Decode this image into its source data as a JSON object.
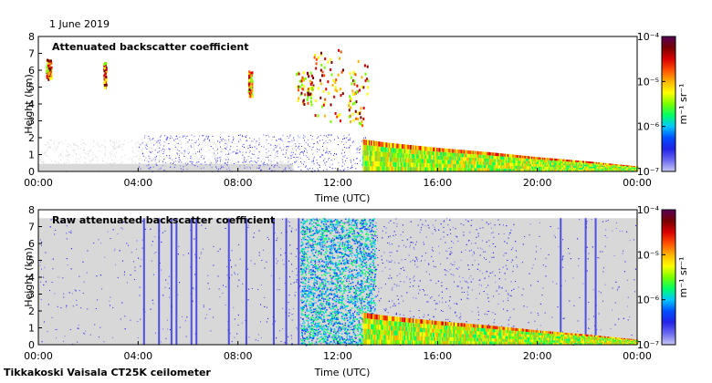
{
  "date_label": "1 June 2019",
  "footer": "Tikkakoski Vaisala CT25K ceilometer",
  "colors": {
    "frame": "#000000",
    "noise_gray": "#d8d8d8",
    "colormap": [
      "#c8c8f5",
      "#6a6af0",
      "#2222e6",
      "#0050ff",
      "#00c8ff",
      "#00ff64",
      "#78ff00",
      "#ffff00",
      "#ffb400",
      "#ff5000",
      "#d80000",
      "#780000",
      "#580058"
    ]
  },
  "chart_data": [
    {
      "type": "heatmap",
      "title": "Attenuated backscatter coefficient",
      "xlabel": "Time (UTC)",
      "ylabel": "Height (km)",
      "xlim": [
        "00:00",
        "24:00"
      ],
      "ylim": [
        0,
        8
      ],
      "x_ticks": [
        "00:00",
        "04:00",
        "08:00",
        "12:00",
        "16:00",
        "20:00",
        "00:00"
      ],
      "y_ticks": [
        0,
        1,
        2,
        3,
        4,
        5,
        6,
        7,
        8
      ],
      "colorbar": {
        "label": "m⁻¹ sr⁻¹",
        "scale": "log",
        "range": [
          1e-07,
          0.0001
        ],
        "ticks": [
          "10⁻⁷",
          "10⁻⁶",
          "10⁻⁵",
          "10⁻⁴"
        ]
      },
      "boundary_layer_top_km": [
        {
          "t": 13.0,
          "h": 1.9
        },
        {
          "t": 14,
          "h": 1.7
        },
        {
          "t": 16,
          "h": 1.4
        },
        {
          "t": 18,
          "h": 1.15
        },
        {
          "t": 20,
          "h": 0.85
        },
        {
          "t": 22,
          "h": 0.6
        },
        {
          "t": 24,
          "h": 0.3
        }
      ],
      "cloud_features": [
        {
          "t0": 0.3,
          "t1": 0.5,
          "h0": 5.5,
          "h1": 6.7
        },
        {
          "t0": 2.6,
          "t1": 2.7,
          "h0": 5.0,
          "h1": 6.5
        },
        {
          "t0": 8.4,
          "t1": 8.55,
          "h0": 4.5,
          "h1": 6.0
        },
        {
          "t0": 10.3,
          "t1": 11.0,
          "h0": 4.0,
          "h1": 6.0
        },
        {
          "t0": 11.0,
          "t1": 12.2,
          "h0": 3.0,
          "h1": 7.3
        },
        {
          "t0": 12.4,
          "t1": 13.2,
          "h0": 2.8,
          "h1": 7.0
        }
      ]
    },
    {
      "type": "heatmap",
      "title": "Raw attenuated backscatter coefficient",
      "xlabel": "Time (UTC)",
      "ylabel": "Height (km)",
      "xlim": [
        "00:00",
        "24:00"
      ],
      "ylim": [
        0,
        8
      ],
      "x_ticks": [
        "00:00",
        "04:00",
        "08:00",
        "12:00",
        "16:00",
        "20:00",
        "00:00"
      ],
      "y_ticks": [
        0,
        1,
        2,
        3,
        4,
        5,
        6,
        7,
        8
      ],
      "colorbar": {
        "label": "m⁻¹ sr⁻¹",
        "scale": "log",
        "range": [
          1e-07,
          0.0001
        ],
        "ticks": [
          "10⁻⁷",
          "10⁻⁶",
          "10⁻⁵",
          "10⁻⁴"
        ]
      },
      "noise_top_km": 7.5,
      "boundary_layer_top_km": [
        {
          "t": 13.0,
          "h": 1.9
        },
        {
          "t": 14,
          "h": 1.7
        },
        {
          "t": 16,
          "h": 1.4
        },
        {
          "t": 18,
          "h": 1.15
        },
        {
          "t": 20,
          "h": 0.85
        },
        {
          "t": 22,
          "h": 0.6
        },
        {
          "t": 24,
          "h": 0.3
        }
      ]
    }
  ]
}
